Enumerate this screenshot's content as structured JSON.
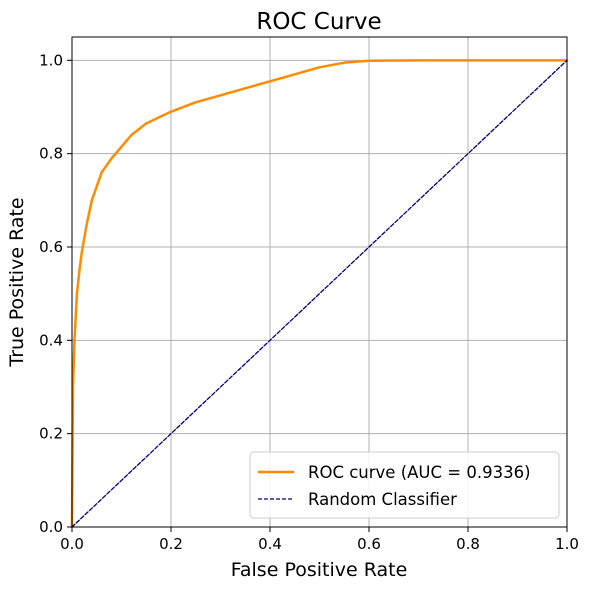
{
  "chart_data": {
    "type": "line",
    "title": "ROC Curve",
    "xlabel": "False Positive Rate",
    "ylabel": "True Positive Rate",
    "xlim": [
      0.0,
      1.0
    ],
    "ylim": [
      0.0,
      1.05
    ],
    "x_ticks": [
      "0.0",
      "0.2",
      "0.4",
      "0.6",
      "0.8",
      "1.0"
    ],
    "y_ticks": [
      "0.0",
      "0.2",
      "0.4",
      "0.6",
      "0.8",
      "1.0"
    ],
    "grid": true,
    "legend_position": "lower-right",
    "series": [
      {
        "name": "ROC curve (AUC = 0.9336)",
        "color": "#ff8c00",
        "style": "solid",
        "x": [
          0.0,
          0.002,
          0.005,
          0.01,
          0.015,
          0.02,
          0.025,
          0.03,
          0.04,
          0.05,
          0.06,
          0.07,
          0.08,
          0.1,
          0.12,
          0.15,
          0.2,
          0.25,
          0.3,
          0.35,
          0.4,
          0.45,
          0.5,
          0.55,
          0.6,
          0.7,
          0.8,
          0.9,
          1.0
        ],
        "y": [
          0.0,
          0.3,
          0.4,
          0.5,
          0.55,
          0.59,
          0.62,
          0.65,
          0.7,
          0.73,
          0.76,
          0.775,
          0.79,
          0.815,
          0.84,
          0.865,
          0.89,
          0.91,
          0.925,
          0.94,
          0.955,
          0.97,
          0.985,
          0.995,
          0.999,
          1.0,
          1.0,
          1.0,
          1.0
        ]
      },
      {
        "name": "Random Classifier",
        "color": "#000080",
        "style": "dashed",
        "x": [
          0.0,
          1.0
        ],
        "y": [
          0.0,
          1.0
        ]
      }
    ]
  }
}
